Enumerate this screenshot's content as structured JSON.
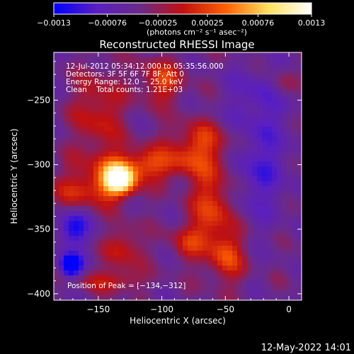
{
  "chart_data": {
    "type": "heatmap",
    "title": "Reconstructed RHESSI Image",
    "xlabel": "Heliocentric X (arcsec)",
    "ylabel": "Heliocentric Y (arcsec)",
    "xlim": [
      -185,
      10
    ],
    "ylim": [
      -405,
      -213
    ],
    "x_ticks": [
      -150,
      -100,
      -50,
      0
    ],
    "x_tick_labels": [
      "−150",
      "−100",
      "−50",
      "0"
    ],
    "y_ticks": [
      -250,
      -300,
      -350,
      -400
    ],
    "y_tick_labels": [
      "−250",
      "−300",
      "−350",
      "−400"
    ],
    "colorbar": {
      "range": [
        -0.0013,
        0.0013
      ],
      "ticks": [
        -0.0013,
        -0.00076,
        -0.00025,
        0.00025,
        0.00076,
        0.0013
      ],
      "tick_labels": [
        "−0.0013",
        "−0.00076",
        "−0.00025",
        "0.00025",
        "0.00076",
        "0.0013"
      ],
      "unit_label": "(photons cm⁻² s⁻¹ asec⁻²)",
      "colors": [
        "#0000ff",
        "#5a1fc0",
        "#6a2a8a",
        "#c01010",
        "#ff6000",
        "#ffe060",
        "#ffffff"
      ]
    },
    "annotations": [
      "12-Jul-2012 05:34:12.000 to 05:35:56.000",
      "Detectors: 3F 5F 6F 7F 8F, Att 0",
      "Energy Range: 12.0 − 25.0 keV",
      "Clean    Total counts: 1.21E+03"
    ],
    "peak_label": "Position of Peak = [−134,−312]",
    "peak": {
      "x": -134,
      "y": -312,
      "value": 0.0013
    },
    "features": [
      {
        "x": -134,
        "y": -312,
        "sx": 9,
        "sy": 8,
        "amp": 1.35
      },
      {
        "x": -112,
        "y": -300,
        "sx": 30,
        "sy": 9,
        "amp": 0.55
      },
      {
        "x": -70,
        "y": -282,
        "sx": 18,
        "sy": 11,
        "amp": 0.45
      },
      {
        "x": -160,
        "y": -320,
        "sx": 20,
        "sy": 10,
        "amp": 0.45
      },
      {
        "x": -150,
        "y": -260,
        "sx": 14,
        "sy": 24,
        "amp": 0.4
      },
      {
        "x": -100,
        "y": -235,
        "sx": 12,
        "sy": 12,
        "amp": 0.5
      },
      {
        "x": -60,
        "y": -332,
        "sx": 12,
        "sy": 26,
        "amp": 0.55
      },
      {
        "x": -48,
        "y": -372,
        "sx": 10,
        "sy": 14,
        "amp": 0.45
      },
      {
        "x": -80,
        "y": -360,
        "sx": 10,
        "sy": 10,
        "amp": 0.35
      },
      {
        "x": -130,
        "y": -365,
        "sx": 10,
        "sy": 12,
        "amp": 0.4
      },
      {
        "x": -140,
        "y": -390,
        "sx": 18,
        "sy": 6,
        "amp": 0.35
      },
      {
        "x": -5,
        "y": -238,
        "sx": 8,
        "sy": 9,
        "amp": 0.3
      },
      {
        "x": -170,
        "y": -350,
        "sx": 9,
        "sy": 10,
        "amp": -0.55
      },
      {
        "x": -172,
        "y": -378,
        "sx": 6,
        "sy": 6,
        "amp": -1.0
      },
      {
        "x": -25,
        "y": -300,
        "sx": 18,
        "sy": 30,
        "amp": -0.35
      },
      {
        "x": -20,
        "y": -245,
        "sx": 18,
        "sy": 15,
        "amp": -0.25
      }
    ]
  },
  "footer": {
    "timestamp": "12-May-2022 14:01"
  }
}
